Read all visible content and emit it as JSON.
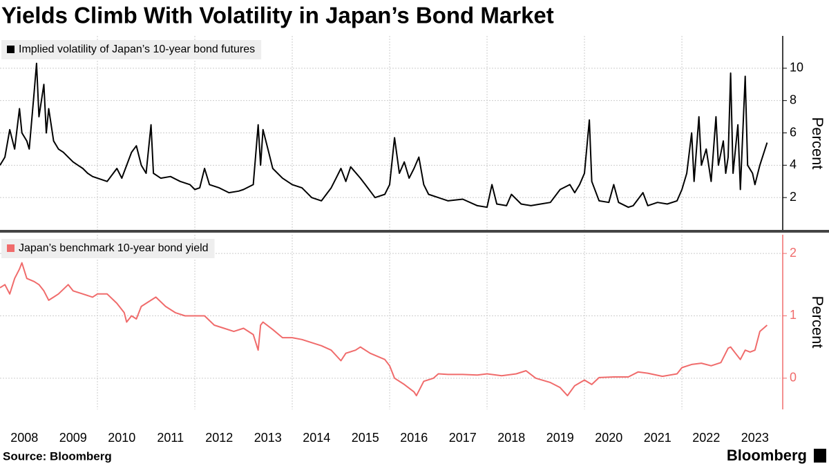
{
  "title": "Yields Climb With Volatility in Japan’s Bond Market",
  "source": "Source: Bloomberg",
  "logo": "Bloomberg",
  "chart_data": [
    {
      "type": "line",
      "x": [
        2008.0,
        2008.1,
        2008.2,
        2008.3,
        2008.4,
        2008.45,
        2008.55,
        2008.6,
        2008.7,
        2008.75,
        2008.8,
        2008.9,
        2008.95,
        2009.0,
        2009.1,
        2009.2,
        2009.3,
        2009.4,
        2009.5,
        2009.6,
        2009.7,
        2009.8,
        2009.9,
        2010.0,
        2010.2,
        2010.4,
        2010.5,
        2010.7,
        2010.8,
        2010.9,
        2011.0,
        2011.1,
        2011.15,
        2011.3,
        2011.5,
        2011.7,
        2011.9,
        2012.0,
        2012.1,
        2012.2,
        2012.3,
        2012.5,
        2012.7,
        2012.9,
        2013.0,
        2013.2,
        2013.3,
        2013.35,
        2013.4,
        2013.5,
        2013.6,
        2013.8,
        2014.0,
        2014.2,
        2014.4,
        2014.6,
        2014.8,
        2014.9,
        2015.0,
        2015.1,
        2015.2,
        2015.4,
        2015.5,
        2015.7,
        2015.9,
        2016.0,
        2016.1,
        2016.2,
        2016.3,
        2016.4,
        2016.5,
        2016.6,
        2016.7,
        2016.8,
        2017.0,
        2017.2,
        2017.5,
        2017.8,
        2018.0,
        2018.1,
        2018.2,
        2018.4,
        2018.5,
        2018.7,
        2018.9,
        2019.1,
        2019.3,
        2019.5,
        2019.7,
        2019.8,
        2019.9,
        2020.0,
        2020.1,
        2020.15,
        2020.3,
        2020.5,
        2020.6,
        2020.7,
        2020.9,
        2021.0,
        2021.2,
        2021.3,
        2021.5,
        2021.7,
        2021.9,
        2022.0,
        2022.1,
        2022.2,
        2022.25,
        2022.35,
        2022.4,
        2022.5,
        2022.6,
        2022.7,
        2022.75,
        2022.85,
        2022.9,
        2022.95,
        2023.0,
        2023.05,
        2023.15,
        2023.2,
        2023.3,
        2023.35,
        2023.45,
        2023.5,
        2023.6,
        2023.75
      ],
      "series": [
        {
          "name": "Implied volatility of Japan’s 10-year bond futures",
          "color": "#000000",
          "values": [
            4.0,
            4.5,
            6.2,
            5.0,
            7.5,
            6.0,
            5.5,
            5.0,
            8.5,
            10.3,
            7.0,
            9.0,
            6.0,
            7.5,
            5.5,
            5.0,
            4.8,
            4.5,
            4.2,
            4.0,
            3.8,
            3.5,
            3.3,
            3.2,
            3.0,
            3.8,
            3.2,
            4.8,
            5.2,
            4.0,
            3.5,
            6.5,
            3.5,
            3.2,
            3.3,
            3.0,
            2.8,
            2.5,
            2.6,
            3.8,
            2.8,
            2.6,
            2.3,
            2.4,
            2.5,
            2.8,
            6.5,
            4.0,
            6.2,
            5.0,
            3.8,
            3.2,
            2.8,
            2.6,
            2.0,
            1.8,
            2.6,
            3.2,
            3.8,
            3.0,
            3.9,
            3.2,
            2.8,
            2.0,
            2.2,
            2.8,
            5.7,
            3.5,
            4.2,
            3.2,
            3.8,
            4.5,
            2.8,
            2.2,
            2.0,
            1.8,
            1.9,
            1.5,
            1.4,
            2.8,
            1.6,
            1.5,
            2.2,
            1.6,
            1.5,
            1.6,
            1.7,
            2.5,
            2.8,
            2.3,
            2.8,
            3.5,
            6.8,
            3.0,
            1.8,
            1.7,
            2.8,
            1.7,
            1.4,
            1.5,
            2.3,
            1.5,
            1.7,
            1.6,
            1.8,
            2.5,
            3.5,
            6.0,
            3.0,
            7.0,
            4.0,
            5.0,
            3.0,
            7.0,
            4.0,
            5.5,
            3.5,
            4.5,
            9.7,
            3.5,
            6.5,
            2.5,
            9.5,
            4.0,
            3.5,
            2.8,
            4.0,
            5.4
          ]
        }
      ],
      "xlim": [
        2008,
        2024.07
      ],
      "xticks": [
        2008,
        2009,
        2010,
        2011,
        2012,
        2013,
        2014,
        2015,
        2016,
        2017,
        2018,
        2019,
        2020,
        2021,
        2022,
        2023
      ],
      "ylim": [
        0,
        12
      ],
      "yticks": [
        2,
        4,
        6,
        8,
        10
      ],
      "ylabel": "Percent",
      "grid": true
    },
    {
      "type": "line",
      "x": [
        2008.0,
        2008.1,
        2008.2,
        2008.3,
        2008.4,
        2008.45,
        2008.55,
        2008.7,
        2008.8,
        2008.9,
        2009.0,
        2009.1,
        2009.2,
        2009.4,
        2009.5,
        2009.7,
        2009.9,
        2010.0,
        2010.2,
        2010.4,
        2010.55,
        2010.6,
        2010.7,
        2010.8,
        2010.9,
        2011.0,
        2011.2,
        2011.4,
        2011.6,
        2011.8,
        2012.0,
        2012.2,
        2012.4,
        2012.6,
        2012.8,
        2013.0,
        2013.2,
        2013.3,
        2013.35,
        2013.4,
        2013.6,
        2013.8,
        2014.0,
        2014.2,
        2014.4,
        2014.6,
        2014.8,
        2015.0,
        2015.1,
        2015.3,
        2015.4,
        2015.6,
        2015.9,
        2016.0,
        2016.1,
        2016.3,
        2016.5,
        2016.55,
        2016.7,
        2016.9,
        2017.0,
        2017.2,
        2017.5,
        2017.8,
        2018.0,
        2018.3,
        2018.6,
        2018.8,
        2019.0,
        2019.3,
        2019.5,
        2019.65,
        2019.8,
        2020.0,
        2020.15,
        2020.3,
        2020.6,
        2020.9,
        2021.1,
        2021.3,
        2021.6,
        2021.9,
        2022.0,
        2022.2,
        2022.4,
        2022.6,
        2022.8,
        2022.95,
        2023.0,
        2023.1,
        2023.2,
        2023.3,
        2023.4,
        2023.5,
        2023.6,
        2023.75
      ],
      "series": [
        {
          "name": "Japan’s benchmark 10-year bond yield",
          "color": "#f06b6b",
          "values": [
            1.45,
            1.5,
            1.35,
            1.6,
            1.75,
            1.85,
            1.6,
            1.55,
            1.5,
            1.4,
            1.25,
            1.3,
            1.35,
            1.5,
            1.4,
            1.35,
            1.3,
            1.35,
            1.35,
            1.2,
            1.05,
            0.9,
            1.0,
            0.95,
            1.15,
            1.2,
            1.3,
            1.15,
            1.05,
            1.0,
            1.0,
            1.0,
            0.85,
            0.8,
            0.75,
            0.8,
            0.7,
            0.45,
            0.85,
            0.9,
            0.78,
            0.65,
            0.65,
            0.62,
            0.57,
            0.52,
            0.45,
            0.28,
            0.4,
            0.45,
            0.5,
            0.4,
            0.3,
            0.2,
            0.0,
            -0.1,
            -0.22,
            -0.28,
            -0.05,
            0.0,
            0.07,
            0.06,
            0.06,
            0.05,
            0.07,
            0.04,
            0.07,
            0.12,
            0.0,
            -0.07,
            -0.15,
            -0.28,
            -0.12,
            -0.03,
            -0.1,
            0.01,
            0.02,
            0.02,
            0.1,
            0.08,
            0.03,
            0.07,
            0.17,
            0.22,
            0.24,
            0.2,
            0.25,
            0.48,
            0.5,
            0.4,
            0.3,
            0.45,
            0.42,
            0.45,
            0.75,
            0.85
          ]
        }
      ],
      "xlim": [
        2008,
        2024.07
      ],
      "xticks": [
        2008,
        2009,
        2010,
        2011,
        2012,
        2013,
        2014,
        2015,
        2016,
        2017,
        2018,
        2019,
        2020,
        2021,
        2022,
        2023
      ],
      "ylim": [
        -0.5,
        2.3
      ],
      "yticks": [
        0,
        1,
        2
      ],
      "ylabel": "Percent",
      "grid": true
    }
  ]
}
